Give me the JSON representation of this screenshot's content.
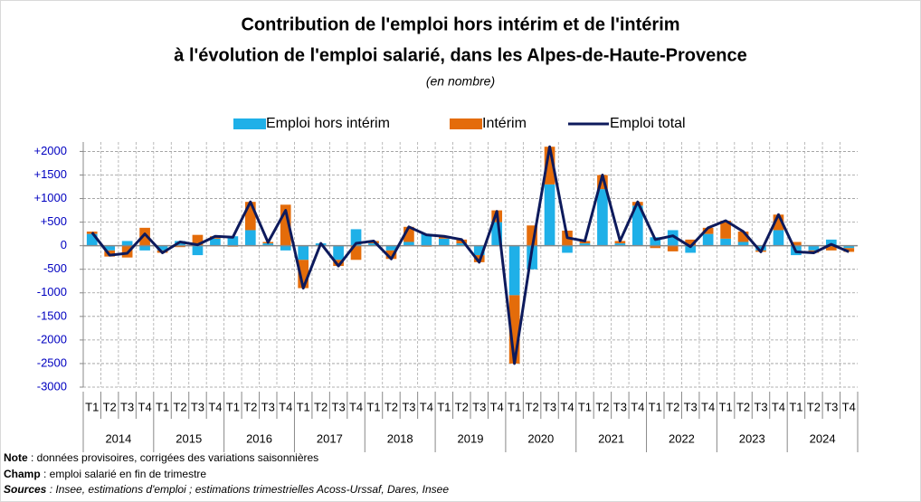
{
  "chart_data": {
    "type": "bar",
    "title": [
      "Contribution de l'emploi hors intérim et de l'intérim",
      "à l'évolution de l'emploi salarié, dans les Alpes-de-Haute-Provence"
    ],
    "subtitle": "(en nombre)",
    "categories": [
      "T1",
      "T2",
      "T3",
      "T4",
      "T1",
      "T2",
      "T3",
      "T4",
      "T1",
      "T2",
      "T3",
      "T4",
      "T1",
      "T2",
      "T3",
      "T4",
      "T1",
      "T2",
      "T3",
      "T4",
      "T1",
      "T2",
      "T3",
      "T4",
      "T1",
      "T2",
      "T3",
      "T4",
      "T1",
      "T2",
      "T3",
      "T4",
      "T1",
      "T2",
      "T3",
      "T4",
      "T1",
      "T2",
      "T3",
      "T4",
      "T1",
      "T2",
      "T3",
      "T4"
    ],
    "years": [
      "2014",
      "2015",
      "2016",
      "2017",
      "2018",
      "2019",
      "2020",
      "2021",
      "2022",
      "2023",
      "2024"
    ],
    "series": [
      {
        "name": "Emploi hors intérim",
        "type": "bar",
        "color": "#1fb0e8",
        "values": [
          250,
          -100,
          100,
          -100,
          -100,
          100,
          -200,
          150,
          200,
          330,
          50,
          -100,
          -300,
          50,
          -300,
          350,
          50,
          -100,
          80,
          250,
          150,
          50,
          -200,
          500,
          -1050,
          -500,
          1300,
          -150,
          50,
          1200,
          50,
          850,
          180,
          330,
          -150,
          250,
          150,
          80,
          -100,
          330,
          -200,
          -100,
          130,
          -50
        ]
      },
      {
        "name": "Intérim",
        "type": "bar",
        "color": "#e46c0a",
        "values": [
          50,
          -130,
          -250,
          380,
          -50,
          -30,
          230,
          50,
          -20,
          600,
          30,
          870,
          -600,
          0,
          -130,
          -300,
          50,
          -180,
          320,
          -20,
          50,
          80,
          -150,
          250,
          -1450,
          430,
          800,
          320,
          50,
          300,
          50,
          80,
          -50,
          -120,
          130,
          130,
          380,
          220,
          -30,
          330,
          80,
          -50,
          -100,
          -80
        ]
      },
      {
        "name": "Emploi total",
        "type": "line",
        "color": "#0d1a5c",
        "values": [
          280,
          -200,
          -160,
          250,
          -150,
          80,
          20,
          200,
          180,
          930,
          70,
          750,
          -900,
          50,
          -430,
          50,
          100,
          -280,
          400,
          230,
          200,
          130,
          -350,
          730,
          -2500,
          -70,
          2100,
          170,
          100,
          1500,
          100,
          930,
          130,
          210,
          -20,
          380,
          530,
          300,
          -130,
          660,
          -130,
          -150,
          30,
          -130
        ]
      }
    ],
    "ylim": [
      -3000,
      2200
    ],
    "yticks": [
      {
        "value": 2000,
        "label": "+2000"
      },
      {
        "value": 1500,
        "label": "+1500"
      },
      {
        "value": 1000,
        "label": "+1000"
      },
      {
        "value": 500,
        "label": "+500"
      },
      0,
      -500,
      -1000,
      -1500,
      -2000,
      -2500,
      -3000
    ],
    "grid": true,
    "legend": "top",
    "notes": [
      {
        "label": "Note",
        "text": " : données provisoires, corrigées des variations saisonnières"
      },
      {
        "label": "Champ",
        "text": " : emploi salarié en fin de trimestre"
      },
      {
        "label": "Sources",
        "text": " : Insee, estimations d'emploi ; estimations trimestrielles Acoss-Urssaf, Dares, Insee"
      }
    ]
  }
}
